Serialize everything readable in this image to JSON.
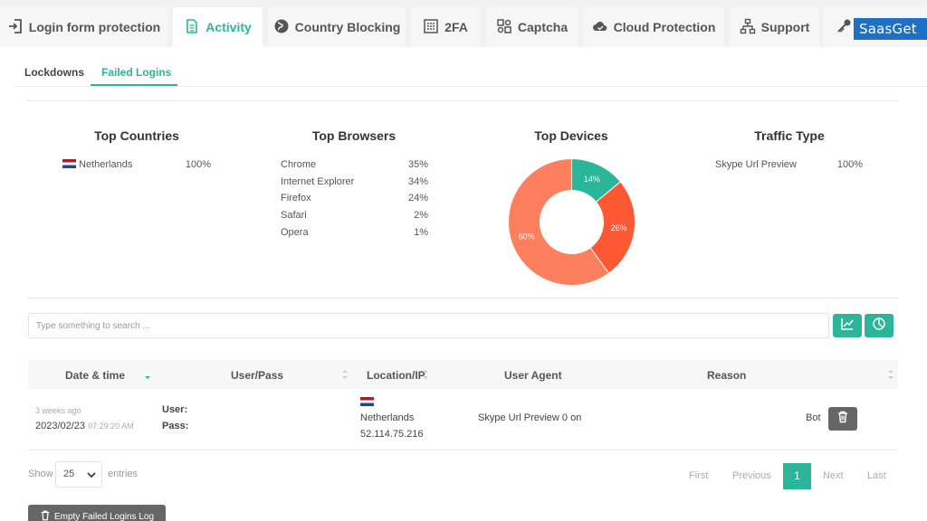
{
  "top_tabs": [
    {
      "label": "Login form protection",
      "icon": "login-arrow-icon"
    },
    {
      "label": "Activity",
      "icon": "document-icon",
      "active": true
    },
    {
      "label": "Country Blocking",
      "icon": "globe-icon"
    },
    {
      "label": "2FA",
      "icon": "keypad-icon"
    },
    {
      "label": "Captcha",
      "icon": "puzzle-icon"
    },
    {
      "label": "Cloud Protection",
      "icon": "cloud-check-icon"
    },
    {
      "label": "Support",
      "icon": "sitemap-icon"
    },
    {
      "label": "",
      "icon": "key-icon"
    }
  ],
  "brand": "SaasGet",
  "sub_tabs": [
    {
      "label": "Lockdowns"
    },
    {
      "label": "Failed Logins",
      "active": true
    }
  ],
  "stats": {
    "countries": {
      "title": "Top Countries",
      "rows": [
        {
          "name": "Netherlands",
          "value": "100%"
        }
      ]
    },
    "browsers": {
      "title": "Top Browsers",
      "rows": [
        {
          "name": "Chrome",
          "value": "35%"
        },
        {
          "name": "Internet Explorer",
          "value": "34%"
        },
        {
          "name": "Firefox",
          "value": "24%"
        },
        {
          "name": "Safari",
          "value": "2%"
        },
        {
          "name": "Opera",
          "value": "1%"
        }
      ]
    },
    "devices": {
      "title": "Top Devices"
    },
    "traffic": {
      "title": "Traffic Type",
      "rows": [
        {
          "name": "Skype Url Preview",
          "value": "100%"
        }
      ]
    }
  },
  "chart_data": {
    "type": "pie",
    "title": "Top Devices",
    "donut": true,
    "slices": [
      {
        "label": "14%",
        "value": 14,
        "color": "#2bb59a"
      },
      {
        "label": "26%",
        "value": 26,
        "color": "#fe5733"
      },
      {
        "label": "60%",
        "value": 60,
        "color": "#fe7f5d"
      }
    ]
  },
  "search": {
    "placeholder": "Type something to search ..."
  },
  "table": {
    "headers": [
      "Date & time",
      "User/Pass",
      "Location/IP",
      "User Agent",
      "Reason"
    ],
    "rows": [
      {
        "ago": "3 weeks ago",
        "date": "2023/02/23",
        "time": "07:29:20 AM",
        "user_label": "User:",
        "pass_label": "Pass:",
        "country": "Netherlands",
        "ip": "52.114.75.216",
        "agent": "Skype Url Preview 0 on",
        "reason": "Bot"
      }
    ]
  },
  "footer": {
    "show_label": "Show",
    "entries_value": "25",
    "entries_label": "entries",
    "first": "First",
    "previous": "Previous",
    "current_page": "1",
    "next": "Next",
    "last": "Last",
    "empty_button": "Empty Failed Logins Log"
  },
  "colors": {
    "accent": "#2bb59a",
    "dark_button": "#666666"
  }
}
